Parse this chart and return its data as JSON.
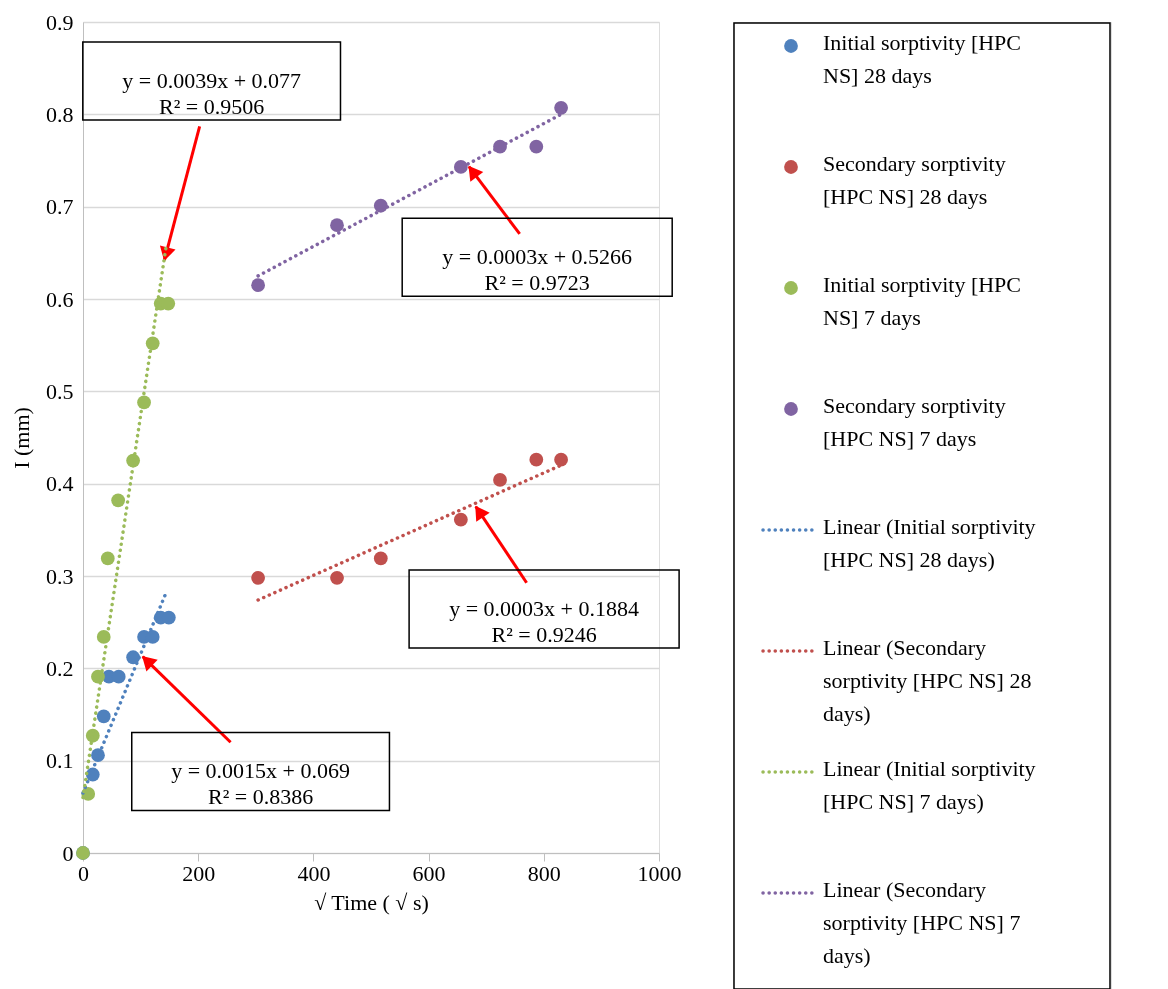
{
  "chart_data": {
    "type": "scatter",
    "xlabel": "√ Time ( √ s)",
    "ylabel": "I (mm)",
    "xlim": [
      0,
      1000
    ],
    "ylim": [
      0,
      0.9
    ],
    "xticks": [
      0,
      200,
      400,
      600,
      800,
      1000
    ],
    "yticks": [
      0,
      0.1,
      0.2,
      0.3,
      0.4,
      0.5,
      0.6,
      0.7,
      0.8,
      0.9
    ],
    "grid": "y",
    "legend": "right",
    "marker": "circle",
    "series": [
      {
        "name": "Initial sorptivity [HPC NS] 28 days",
        "color": "#4f81bd",
        "x": [
          0,
          17,
          26,
          36,
          45,
          62,
          87,
          106,
          121,
          135,
          149
        ],
        "values": [
          0,
          0.085,
          0.106,
          0.148,
          0.191,
          0.191,
          0.212,
          0.234,
          0.234,
          0.255,
          0.255
        ]
      },
      {
        "name": "Secondary sorptivity [HPC NS] 28 days",
        "color": "#c0504d",
        "x": [
          304,
          441,
          517,
          656,
          724,
          787,
          830
        ],
        "values": [
          0.298,
          0.298,
          0.319,
          0.361,
          0.404,
          0.426,
          0.426
        ]
      },
      {
        "name": "Initial sorptivity [HPC NS] 7 days",
        "color": "#9bbb59",
        "x": [
          0,
          9,
          17,
          26,
          36,
          43,
          61,
          87,
          106,
          121,
          135,
          148
        ],
        "values": [
          0,
          0.064,
          0.127,
          0.191,
          0.234,
          0.319,
          0.382,
          0.425,
          0.488,
          0.552,
          0.595,
          0.595
        ]
      },
      {
        "name": "Secondary sorptivity [HPC NS] 7 days",
        "color": "#8064a2",
        "x": [
          304,
          441,
          517,
          656,
          724,
          787,
          830
        ],
        "values": [
          0.615,
          0.68,
          0.701,
          0.743,
          0.765,
          0.765,
          0.807
        ]
      },
      {
        "name": "Linear (Initial sorptivity [HPC NS] 28 days)",
        "type": "line",
        "marker": "none",
        "line_style": "dotted",
        "color": "#4f81bd",
        "x": [
          0,
          143
        ],
        "values": [
          0.065,
          0.28
        ]
      },
      {
        "name": "Linear (Secondary sorptivity [HPC NS] 28 days)",
        "type": "line",
        "marker": "none",
        "line_style": "dotted",
        "color": "#c0504d",
        "x": [
          304,
          830
        ],
        "values": [
          0.274,
          0.42
        ]
      },
      {
        "name": "Linear (Initial sorptivity [HPC NS] 7 days)",
        "type": "line",
        "marker": "none",
        "line_style": "dotted",
        "color": "#9bbb59",
        "x": [
          0,
          145
        ],
        "values": [
          0.06,
          0.66
        ]
      },
      {
        "name": "Linear (Secondary sorptivity [HPC NS] 7 days)",
        "type": "line",
        "marker": "none",
        "line_style": "dotted",
        "color": "#8064a2",
        "x": [
          304,
          830
        ],
        "values": [
          0.625,
          0.8
        ]
      }
    ],
    "annotations": [
      {
        "text": "y = 0.0039x + 0.077\nR² = 0.9506",
        "x": 140,
        "y": 0.639
      },
      {
        "text": "y = 0.0003x + 0.5266\nR² = 0.9723",
        "x": 667,
        "y": 0.746
      },
      {
        "text": "y = 0.0003x + 0.1884\nR² = 0.9246",
        "x": 679,
        "y": 0.378
      },
      {
        "text": "y = 0.0015x + 0.069\nR² = 0.8386",
        "x": 100,
        "y": 0.215
      }
    ]
  }
}
